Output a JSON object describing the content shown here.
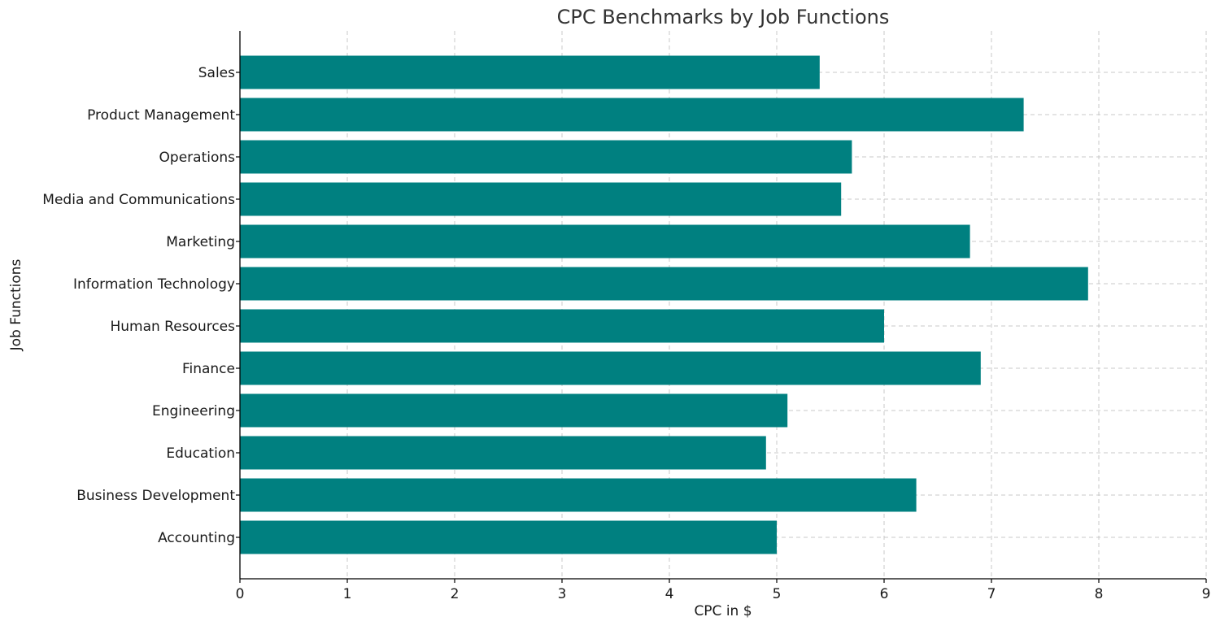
{
  "chart_data": {
    "type": "bar",
    "orientation": "horizontal",
    "title": "CPC Benchmarks by Job Functions",
    "xlabel": "CPC in $",
    "ylabel": "Job Functions",
    "categories": [
      "Accounting",
      "Business Development",
      "Education",
      "Engineering",
      "Finance",
      "Human Resources",
      "Information Technology",
      "Marketing",
      "Media and Communications",
      "Operations",
      "Product Management",
      "Sales"
    ],
    "values": [
      5.0,
      6.3,
      4.9,
      5.1,
      6.9,
      6.0,
      7.9,
      6.8,
      5.6,
      5.7,
      7.3,
      5.4
    ],
    "xlim": [
      0,
      9
    ],
    "xticks": [
      0,
      1,
      2,
      3,
      4,
      5,
      6,
      7,
      8,
      9
    ],
    "grid": true,
    "bar_color": "#008080",
    "grid_color": "#c8c8c8"
  }
}
